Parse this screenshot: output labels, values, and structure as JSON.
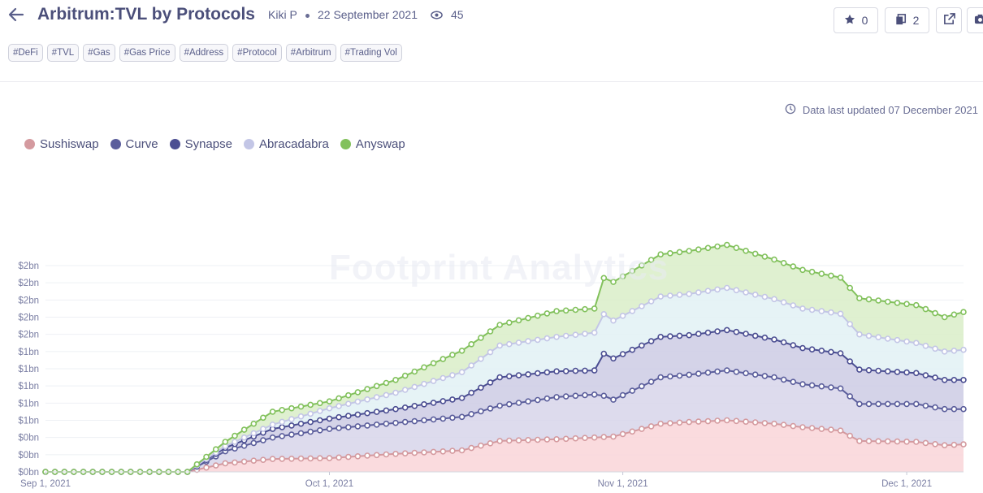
{
  "header": {
    "title": "Arbitrum:TVL by Protocols",
    "author": "Kiki P",
    "date": "22 September 2021",
    "views": "45",
    "stars": "0",
    "copies": "2"
  },
  "tags": [
    "#DeFi",
    "#TVL",
    "#Gas",
    "#Gas Price",
    "#Address",
    "#Protocol",
    "#Arbitrum",
    "#Trading Vol"
  ],
  "updated": "Data last updated 07 December 2021",
  "watermark": "Footprint Analytics",
  "icons": [
    "back-arrow-icon",
    "eye-icon",
    "star-icon",
    "copy-icon",
    "external-link-icon",
    "camera-icon",
    "clock-icon"
  ],
  "chart_data": {
    "type": "area",
    "stacked": true,
    "x_start": "2021-09-01",
    "x_end": "2021-12-07",
    "x_ticks": [
      {
        "date": "2021-09-01",
        "label": "Sep 1, 2021"
      },
      {
        "date": "2021-10-01",
        "label": "Oct 1, 2021"
      },
      {
        "date": "2021-11-01",
        "label": "Nov 1, 2021"
      },
      {
        "date": "2021-12-01",
        "label": "Dec 1, 2021"
      }
    ],
    "y_unit": "$",
    "ylim": [
      0,
      3.6
    ],
    "y_ticks": [
      0,
      0.2,
      0.4,
      0.6,
      0.8,
      1.0,
      1.2,
      1.4,
      1.6,
      1.8,
      2.0,
      2.2,
      2.4
    ],
    "y_tick_labels": [
      "$0bn",
      "$0bn",
      "$0bn",
      "$1bn",
      "$1bn",
      "$1bn",
      "$1bn",
      "$1bn",
      "$2bn",
      "$2bn",
      "$2bn",
      "$2bn",
      "$2bn"
    ],
    "grid": true,
    "legend_position": "top-left",
    "series": [
      {
        "name": "Sushiswap",
        "color": "#d49a9f",
        "fill": "#f9d5d8",
        "points": [
          [
            "2021-09-01",
            0
          ],
          [
            "2021-09-16",
            0
          ],
          [
            "2021-09-20",
            0.1
          ],
          [
            "2021-09-25",
            0.15
          ],
          [
            "2021-10-01",
            0.16
          ],
          [
            "2021-10-08",
            0.21
          ],
          [
            "2021-10-15",
            0.25
          ],
          [
            "2021-10-19",
            0.36
          ],
          [
            "2021-10-25",
            0.38
          ],
          [
            "2021-10-31",
            0.41
          ],
          [
            "2021-11-05",
            0.56
          ],
          [
            "2021-11-08",
            0.58
          ],
          [
            "2021-11-12",
            0.6
          ],
          [
            "2021-11-17",
            0.56
          ],
          [
            "2021-11-20",
            0.52
          ],
          [
            "2021-11-24",
            0.48
          ],
          [
            "2021-11-26",
            0.36
          ],
          [
            "2021-12-02",
            0.35
          ],
          [
            "2021-12-05",
            0.31
          ],
          [
            "2021-12-07",
            0.32
          ]
        ]
      },
      {
        "name": "Curve",
        "color": "#5b5e9c",
        "fill": "#d7d5ea",
        "points": [
          [
            "2021-09-01",
            0
          ],
          [
            "2021-09-16",
            0
          ],
          [
            "2021-09-20",
            0.14
          ],
          [
            "2021-09-25",
            0.25
          ],
          [
            "2021-10-01",
            0.34
          ],
          [
            "2021-10-08",
            0.36
          ],
          [
            "2021-10-15",
            0.39
          ],
          [
            "2021-10-19",
            0.41
          ],
          [
            "2021-10-25",
            0.49
          ],
          [
            "2021-10-29",
            0.5
          ],
          [
            "2021-10-30",
            0.48
          ],
          [
            "2021-10-31",
            0.43
          ],
          [
            "2021-11-05",
            0.54
          ],
          [
            "2021-11-08",
            0.55
          ],
          [
            "2021-11-12",
            0.58
          ],
          [
            "2021-11-17",
            0.54
          ],
          [
            "2021-11-20",
            0.5
          ],
          [
            "2021-11-24",
            0.49
          ],
          [
            "2021-11-26",
            0.43
          ],
          [
            "2021-12-02",
            0.44
          ],
          [
            "2021-12-05",
            0.42
          ],
          [
            "2021-12-07",
            0.41
          ]
        ]
      },
      {
        "name": "Synapse",
        "color": "#4b4e92",
        "fill": "#cdcbe4",
        "points": [
          [
            "2021-09-01",
            0
          ],
          [
            "2021-09-16",
            0
          ],
          [
            "2021-09-20",
            0.04
          ],
          [
            "2021-09-25",
            0.1
          ],
          [
            "2021-10-01",
            0.12
          ],
          [
            "2021-10-08",
            0.16
          ],
          [
            "2021-10-15",
            0.22
          ],
          [
            "2021-10-19",
            0.33
          ],
          [
            "2021-10-25",
            0.3
          ],
          [
            "2021-10-29",
            0.28
          ],
          [
            "2021-10-30",
            0.49
          ],
          [
            "2021-10-31",
            0.48
          ],
          [
            "2021-11-05",
            0.47
          ],
          [
            "2021-11-08",
            0.46
          ],
          [
            "2021-11-12",
            0.47
          ],
          [
            "2021-11-17",
            0.44
          ],
          [
            "2021-11-20",
            0.42
          ],
          [
            "2021-11-24",
            0.41
          ],
          [
            "2021-11-26",
            0.4
          ],
          [
            "2021-12-02",
            0.36
          ],
          [
            "2021-12-05",
            0.34
          ],
          [
            "2021-12-07",
            0.34
          ]
        ]
      },
      {
        "name": "Abracadabra",
        "color": "#c3c6e6",
        "fill": "#e2f1f4",
        "points": [
          [
            "2021-09-01",
            0
          ],
          [
            "2021-09-16",
            0
          ],
          [
            "2021-09-20",
            0.02
          ],
          [
            "2021-09-25",
            0.05
          ],
          [
            "2021-10-01",
            0.12
          ],
          [
            "2021-10-08",
            0.19
          ],
          [
            "2021-10-15",
            0.3
          ],
          [
            "2021-10-19",
            0.37
          ],
          [
            "2021-10-25",
            0.4
          ],
          [
            "2021-10-29",
            0.44
          ],
          [
            "2021-10-30",
            0.46
          ],
          [
            "2021-10-31",
            0.44
          ],
          [
            "2021-11-05",
            0.47
          ],
          [
            "2021-11-08",
            0.48
          ],
          [
            "2021-11-12",
            0.49
          ],
          [
            "2021-11-17",
            0.47
          ],
          [
            "2021-11-20",
            0.46
          ],
          [
            "2021-11-24",
            0.46
          ],
          [
            "2021-11-26",
            0.41
          ],
          [
            "2021-12-02",
            0.35
          ],
          [
            "2021-12-05",
            0.33
          ],
          [
            "2021-12-07",
            0.35
          ]
        ]
      },
      {
        "name": "Anyswap",
        "color": "#82c15c",
        "fill": "#d9edc8",
        "points": [
          [
            "2021-09-01",
            0
          ],
          [
            "2021-09-16",
            0
          ],
          [
            "2021-09-20",
            0.05
          ],
          [
            "2021-09-25",
            0.15
          ],
          [
            "2021-10-01",
            0.08
          ],
          [
            "2021-10-08",
            0.15
          ],
          [
            "2021-10-15",
            0.25
          ],
          [
            "2021-10-19",
            0.24
          ],
          [
            "2021-10-25",
            0.3
          ],
          [
            "2021-10-29",
            0.28
          ],
          [
            "2021-10-30",
            0.42
          ],
          [
            "2021-10-31",
            0.45
          ],
          [
            "2021-11-05",
            0.49
          ],
          [
            "2021-11-08",
            0.5
          ],
          [
            "2021-11-12",
            0.5
          ],
          [
            "2021-11-17",
            0.46
          ],
          [
            "2021-11-20",
            0.45
          ],
          [
            "2021-11-24",
            0.42
          ],
          [
            "2021-11-26",
            0.42
          ],
          [
            "2021-12-02",
            0.44
          ],
          [
            "2021-12-05",
            0.4
          ],
          [
            "2021-12-07",
            0.44
          ]
        ]
      }
    ]
  }
}
